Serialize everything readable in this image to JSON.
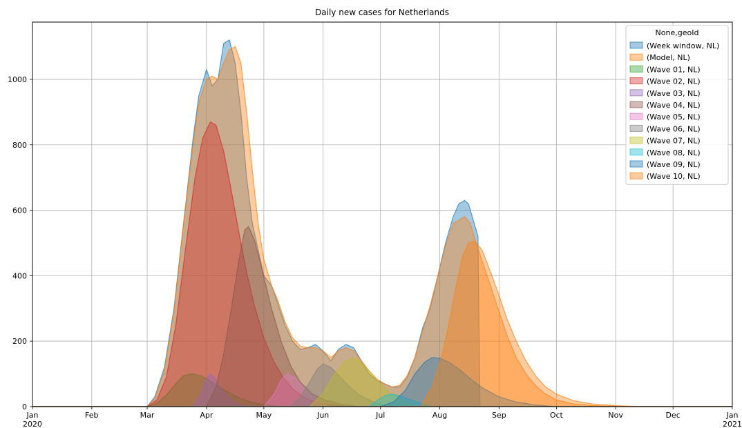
{
  "chart_data": {
    "type": "area",
    "title": "Daily new cases for Netherlands",
    "xlabel": "",
    "ylabel": "",
    "xlim": [
      "2020-01-01",
      "2021-01-01"
    ],
    "ylim": [
      0,
      1175
    ],
    "grid": true,
    "x_ticks": [
      {
        "date": "2020-01-01",
        "label": "Jan",
        "sublabel": "2020"
      },
      {
        "date": "2020-02-01",
        "label": "Feb"
      },
      {
        "date": "2020-03-01",
        "label": "Mar"
      },
      {
        "date": "2020-04-01",
        "label": "Apr"
      },
      {
        "date": "2020-05-01",
        "label": "May"
      },
      {
        "date": "2020-06-01",
        "label": "Jun"
      },
      {
        "date": "2020-07-01",
        "label": "Jul"
      },
      {
        "date": "2020-08-01",
        "label": "Aug"
      },
      {
        "date": "2020-09-01",
        "label": "Sep"
      },
      {
        "date": "2020-10-01",
        "label": "Oct"
      },
      {
        "date": "2020-11-01",
        "label": "Nov"
      },
      {
        "date": "2020-12-01",
        "label": "Dec"
      },
      {
        "date": "2021-01-01",
        "label": "Jan",
        "sublabel": "2021"
      }
    ],
    "y_ticks": [
      0,
      200,
      400,
      600,
      800,
      1000
    ],
    "legend": {
      "title": "None,geoId",
      "position": "top-right"
    },
    "series": [
      {
        "name": "(Week window, NL)",
        "color": "#1f77b4",
        "x": [
          "2020-01-01",
          "2020-03-01",
          "2020-03-05",
          "2020-03-10",
          "2020-03-15",
          "2020-03-20",
          "2020-03-25",
          "2020-03-28",
          "2020-04-01",
          "2020-04-04",
          "2020-04-07",
          "2020-04-10",
          "2020-04-13",
          "2020-04-16",
          "2020-04-19",
          "2020-04-22",
          "2020-04-25",
          "2020-04-28",
          "2020-05-01",
          "2020-05-05",
          "2020-05-08",
          "2020-05-12",
          "2020-05-16",
          "2020-05-20",
          "2020-05-24",
          "2020-05-28",
          "2020-06-01",
          "2020-06-05",
          "2020-06-09",
          "2020-06-13",
          "2020-06-17",
          "2020-06-21",
          "2020-06-25",
          "2020-06-29",
          "2020-07-03",
          "2020-07-07",
          "2020-07-11",
          "2020-07-15",
          "2020-07-19",
          "2020-07-23",
          "2020-07-27",
          "2020-07-31",
          "2020-08-04",
          "2020-08-08",
          "2020-08-11",
          "2020-08-14",
          "2020-08-16",
          "2020-08-18",
          "2020-08-21",
          "2020-08-22"
        ],
        "values": [
          0,
          0,
          30,
          120,
          300,
          560,
          820,
          950,
          1030,
          980,
          1000,
          1110,
          1120,
          1050,
          900,
          700,
          560,
          480,
          400,
          370,
          320,
          250,
          200,
          175,
          180,
          190,
          170,
          140,
          175,
          190,
          180,
          140,
          100,
          80,
          70,
          60,
          60,
          90,
          150,
          240,
          300,
          400,
          500,
          580,
          620,
          630,
          620,
          580,
          520,
          0
        ]
      },
      {
        "name": "(Model, NL)",
        "color": "#ff7f0e",
        "x": [
          "2020-01-01",
          "2020-03-01",
          "2020-03-05",
          "2020-03-10",
          "2020-03-15",
          "2020-03-20",
          "2020-03-25",
          "2020-03-28",
          "2020-04-01",
          "2020-04-04",
          "2020-04-07",
          "2020-04-10",
          "2020-04-13",
          "2020-04-16",
          "2020-04-19",
          "2020-04-22",
          "2020-04-25",
          "2020-04-28",
          "2020-05-01",
          "2020-05-05",
          "2020-05-08",
          "2020-05-12",
          "2020-05-16",
          "2020-05-20",
          "2020-05-24",
          "2020-05-28",
          "2020-06-01",
          "2020-06-05",
          "2020-06-09",
          "2020-06-13",
          "2020-06-17",
          "2020-06-21",
          "2020-06-25",
          "2020-06-29",
          "2020-07-03",
          "2020-07-07",
          "2020-07-11",
          "2020-07-15",
          "2020-07-19",
          "2020-07-23",
          "2020-07-27",
          "2020-07-31",
          "2020-08-04",
          "2020-08-08",
          "2020-08-11",
          "2020-08-14",
          "2020-08-17",
          "2020-08-20",
          "2020-08-24",
          "2020-08-28",
          "2020-09-01",
          "2020-09-05",
          "2020-09-10",
          "2020-09-15",
          "2020-09-20",
          "2020-09-25",
          "2020-10-01",
          "2020-10-10",
          "2020-10-20",
          "2020-11-01",
          "2020-11-15",
          "2021-01-01"
        ],
        "values": [
          0,
          0,
          25,
          110,
          290,
          560,
          800,
          930,
          1000,
          1010,
          1000,
          1050,
          1090,
          1100,
          1050,
          900,
          720,
          560,
          450,
          370,
          330,
          260,
          210,
          185,
          180,
          180,
          170,
          150,
          170,
          180,
          170,
          140,
          110,
          85,
          70,
          60,
          65,
          95,
          150,
          230,
          310,
          400,
          490,
          560,
          570,
          580,
          560,
          500,
          430,
          360,
          290,
          220,
          150,
          100,
          65,
          40,
          20,
          8,
          3,
          1,
          0,
          0
        ]
      },
      {
        "name": "(Wave 01, NL)",
        "color": "#2ca02c",
        "x": [
          "2020-01-01",
          "2020-03-01",
          "2020-03-06",
          "2020-03-11",
          "2020-03-16",
          "2020-03-20",
          "2020-03-25",
          "2020-03-30",
          "2020-04-04",
          "2020-04-10",
          "2020-04-16",
          "2020-04-22",
          "2020-04-28",
          "2020-05-05",
          "2020-05-12",
          "2021-01-01"
        ],
        "values": [
          0,
          0,
          10,
          35,
          70,
          95,
          100,
          92,
          75,
          52,
          33,
          18,
          9,
          4,
          0,
          0
        ]
      },
      {
        "name": "(Wave 02, NL)",
        "color": "#d62728",
        "x": [
          "2020-01-01",
          "2020-03-01",
          "2020-03-06",
          "2020-03-11",
          "2020-03-16",
          "2020-03-21",
          "2020-03-26",
          "2020-03-30",
          "2020-04-03",
          "2020-04-06",
          "2020-04-10",
          "2020-04-14",
          "2020-04-18",
          "2020-04-22",
          "2020-04-26",
          "2020-05-01",
          "2020-05-06",
          "2020-05-11",
          "2020-05-16",
          "2020-05-21",
          "2020-05-26",
          "2020-06-01",
          "2020-06-08",
          "2020-06-15",
          "2021-01-01"
        ],
        "values": [
          0,
          0,
          20,
          90,
          250,
          480,
          700,
          820,
          870,
          860,
          780,
          660,
          530,
          410,
          310,
          210,
          140,
          90,
          55,
          32,
          18,
          9,
          4,
          0,
          0
        ]
      },
      {
        "name": "(Wave 03, NL)",
        "color": "#9467bd",
        "x": [
          "2020-01-01",
          "2020-03-25",
          "2020-03-29",
          "2020-04-01",
          "2020-04-03",
          "2020-04-05",
          "2020-04-08",
          "2020-04-12",
          "2020-04-16",
          "2020-04-22",
          "2021-01-01"
        ],
        "values": [
          0,
          0,
          40,
          85,
          100,
          90,
          60,
          30,
          12,
          0,
          0
        ]
      },
      {
        "name": "(Wave 04, NL)",
        "color": "#8c564b",
        "x": [
          "2020-01-01",
          "2020-04-01",
          "2020-04-06",
          "2020-04-10",
          "2020-04-14",
          "2020-04-18",
          "2020-04-21",
          "2020-04-23",
          "2020-04-26",
          "2020-04-30",
          "2020-05-05",
          "2020-05-10",
          "2020-05-15",
          "2020-05-20",
          "2020-05-26",
          "2020-06-02",
          "2020-06-10",
          "2020-06-20",
          "2021-01-01"
        ],
        "values": [
          0,
          0,
          60,
          160,
          300,
          450,
          540,
          550,
          510,
          420,
          300,
          200,
          125,
          75,
          40,
          20,
          8,
          0,
          0
        ]
      },
      {
        "name": "(Wave 05, NL)",
        "color": "#e377c2",
        "x": [
          "2020-01-01",
          "2020-05-01",
          "2020-05-06",
          "2020-05-10",
          "2020-05-13",
          "2020-05-17",
          "2020-05-21",
          "2020-05-25",
          "2020-05-30",
          "2020-06-05",
          "2021-01-01"
        ],
        "values": [
          0,
          0,
          35,
          80,
          100,
          90,
          62,
          35,
          15,
          0,
          0
        ]
      },
      {
        "name": "(Wave 06, NL)",
        "color": "#7f7f7f",
        "x": [
          "2020-01-01",
          "2020-05-15",
          "2020-05-20",
          "2020-05-25",
          "2020-05-29",
          "2020-06-01",
          "2020-06-05",
          "2020-06-10",
          "2020-06-15",
          "2020-06-20",
          "2020-06-27",
          "2020-07-05",
          "2021-01-01"
        ],
        "values": [
          0,
          0,
          30,
          75,
          115,
          130,
          120,
          90,
          60,
          35,
          15,
          0,
          0
        ]
      },
      {
        "name": "(Wave 07, NL)",
        "color": "#bcbd22",
        "x": [
          "2020-01-01",
          "2020-05-25",
          "2020-06-01",
          "2020-06-07",
          "2020-06-12",
          "2020-06-16",
          "2020-06-20",
          "2020-06-25",
          "2020-06-30",
          "2020-07-06",
          "2020-07-13",
          "2020-07-20",
          "2021-01-01"
        ],
        "values": [
          0,
          0,
          40,
          100,
          135,
          148,
          140,
          110,
          75,
          42,
          18,
          0,
          0
        ]
      },
      {
        "name": "(Wave 08, NL)",
        "color": "#17becf",
        "x": [
          "2020-01-01",
          "2020-06-25",
          "2020-06-30",
          "2020-07-04",
          "2020-07-07",
          "2020-07-11",
          "2020-07-16",
          "2020-07-22",
          "2020-07-28",
          "2021-01-01"
        ],
        "values": [
          0,
          0,
          22,
          35,
          38,
          33,
          22,
          10,
          0,
          0
        ]
      },
      {
        "name": "(Wave 09, NL)",
        "color": "#1f77b4",
        "x": [
          "2020-01-01",
          "2020-07-01",
          "2020-07-08",
          "2020-07-14",
          "2020-07-19",
          "2020-07-24",
          "2020-07-28",
          "2020-08-01",
          "2020-08-06",
          "2020-08-12",
          "2020-08-18",
          "2020-08-24",
          "2020-09-01",
          "2020-09-10",
          "2020-09-20",
          "2020-10-01",
          "2021-01-01"
        ],
        "values": [
          0,
          0,
          15,
          50,
          100,
          135,
          150,
          148,
          135,
          110,
          80,
          55,
          30,
          14,
          5,
          0,
          0
        ]
      },
      {
        "name": "(Wave 10, NL)",
        "color": "#ff7f0e",
        "x": [
          "2020-01-01",
          "2020-07-22",
          "2020-07-28",
          "2020-08-02",
          "2020-08-06",
          "2020-08-10",
          "2020-08-13",
          "2020-08-16",
          "2020-08-19",
          "2020-08-23",
          "2020-08-27",
          "2020-09-01",
          "2020-09-05",
          "2020-09-10",
          "2020-09-15",
          "2020-09-20",
          "2020-09-25",
          "2020-10-01",
          "2020-10-10",
          "2020-10-20",
          "2020-11-01",
          "2020-11-15",
          "2021-01-01"
        ],
        "values": [
          0,
          0,
          60,
          150,
          260,
          380,
          460,
          500,
          505,
          480,
          420,
          340,
          270,
          200,
          140,
          95,
          62,
          38,
          18,
          8,
          3,
          0,
          0
        ]
      }
    ]
  }
}
